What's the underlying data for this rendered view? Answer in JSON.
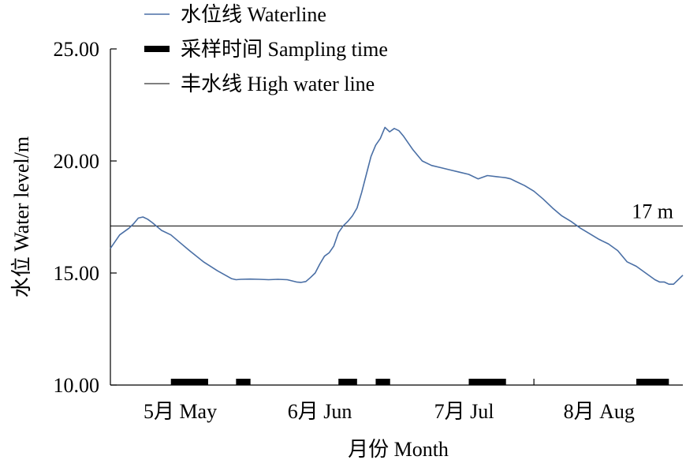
{
  "chart_data": {
    "type": "line",
    "title": "",
    "xlabel": "月份 Month",
    "ylabel": "水位 Water level/m",
    "ylim": [
      10,
      25
    ],
    "yticks": [
      "10.00",
      "15.00",
      "20.00",
      "25.00"
    ],
    "y_tick_values": [
      10,
      15,
      20,
      25
    ],
    "xlim": [
      0,
      123
    ],
    "month_labels": [
      "5月 May",
      "6月 Jun",
      "7月 Jul",
      "8月 Aug"
    ],
    "month_centers": [
      15,
      45,
      76,
      105
    ],
    "month_boundaries": [
      30,
      60,
      91
    ],
    "legend_position": "top-left",
    "legend": [
      "水位线 Waterline",
      "采样时间 Sampling time",
      "丰水线 High water line"
    ],
    "high_water_line": {
      "value": 17.1,
      "label": "17 m"
    },
    "sampling_periods": [
      [
        13,
        21
      ],
      [
        27,
        30
      ],
      [
        49,
        53
      ],
      [
        57,
        60
      ],
      [
        77,
        85
      ],
      [
        113,
        120
      ]
    ],
    "series": [
      {
        "name": "水位线 Waterline",
        "color": "#4a6fa5",
        "x": [
          0,
          2,
          4,
          5,
          6,
          7,
          8,
          9,
          11,
          13,
          15,
          17,
          20,
          23,
          26,
          27,
          28,
          30,
          32,
          34,
          36,
          38,
          40,
          41,
          42,
          43,
          44,
          45,
          46,
          47,
          48,
          49,
          50,
          51,
          52,
          53,
          54,
          55,
          56,
          57,
          58,
          59,
          60,
          61,
          62,
          63,
          64,
          65,
          66,
          67,
          69,
          71,
          73,
          75,
          77,
          79,
          81,
          83,
          85,
          86,
          87,
          89,
          91,
          93,
          95,
          97,
          99,
          101,
          103,
          105,
          107,
          109,
          111,
          113,
          115,
          117,
          118,
          119,
          120,
          121,
          123
        ],
        "values": [
          16.1,
          16.7,
          17.0,
          17.2,
          17.45,
          17.5,
          17.4,
          17.25,
          16.9,
          16.7,
          16.35,
          16.0,
          15.5,
          15.1,
          14.75,
          14.7,
          14.72,
          14.73,
          14.72,
          14.7,
          14.72,
          14.7,
          14.6,
          14.58,
          14.62,
          14.8,
          15.0,
          15.4,
          15.75,
          15.9,
          16.2,
          16.8,
          17.1,
          17.3,
          17.55,
          17.9,
          18.6,
          19.4,
          20.2,
          20.7,
          21.0,
          21.5,
          21.3,
          21.45,
          21.35,
          21.1,
          20.8,
          20.5,
          20.25,
          20.0,
          19.8,
          19.7,
          19.6,
          19.5,
          19.4,
          19.2,
          19.35,
          19.3,
          19.25,
          19.2,
          19.1,
          18.9,
          18.65,
          18.3,
          17.9,
          17.55,
          17.3,
          17.0,
          16.75,
          16.5,
          16.3,
          16.0,
          15.5,
          15.3,
          15.0,
          14.7,
          14.6,
          14.6,
          14.5,
          14.5,
          14.9
        ]
      }
    ]
  }
}
